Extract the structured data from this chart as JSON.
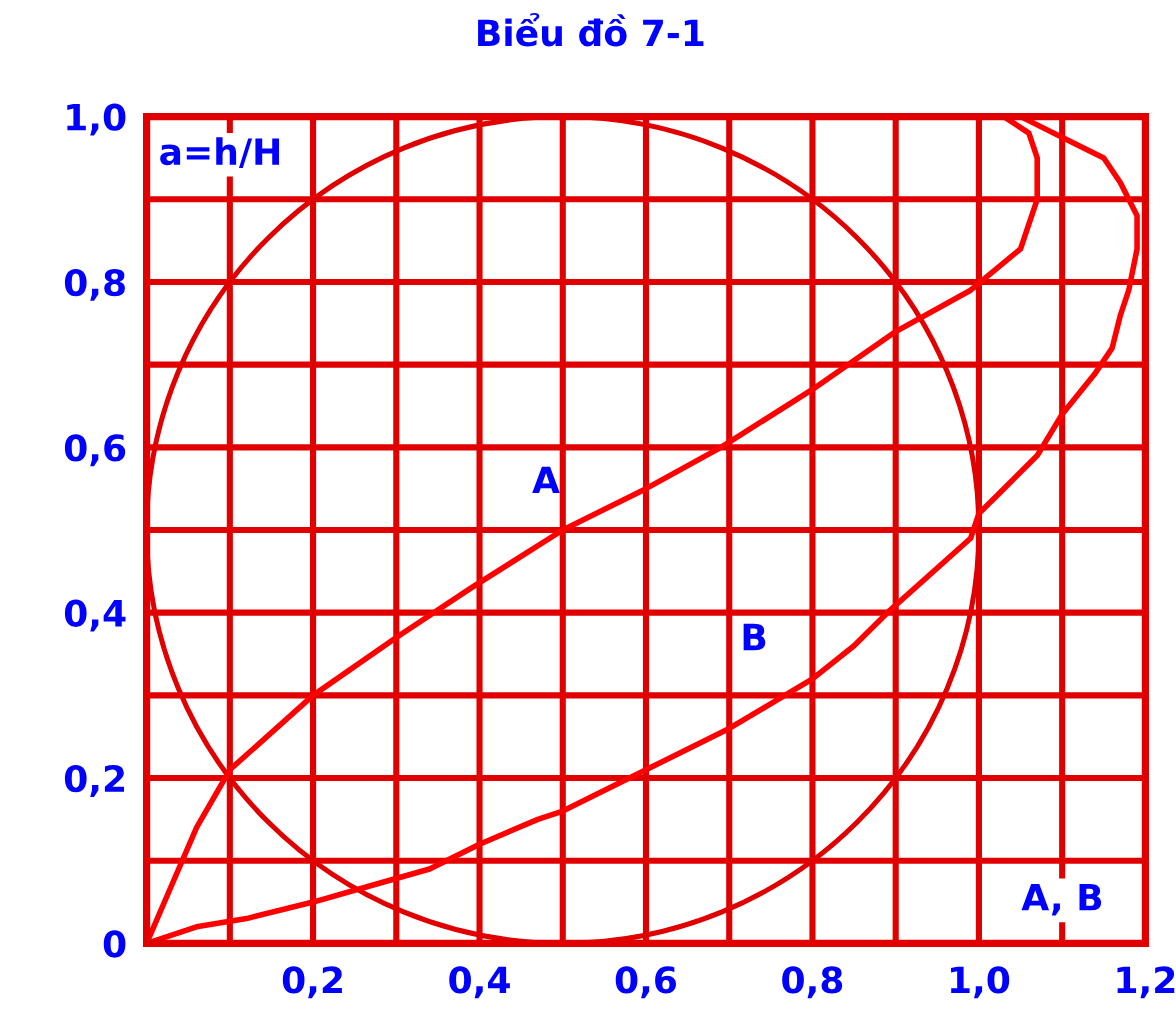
{
  "chart_data": {
    "type": "line",
    "title": "Biểu đồ 7-1",
    "xlabel": "A, B",
    "ylabel": "a=h/H",
    "xlim": [
      0,
      1.2
    ],
    "ylim": [
      0,
      1.0
    ],
    "xticks": [
      {
        "value": 0,
        "label": null
      },
      {
        "value": 0.1,
        "label": null
      },
      {
        "value": 0.2,
        "label": "0,2"
      },
      {
        "value": 0.3,
        "label": null
      },
      {
        "value": 0.4,
        "label": "0,4"
      },
      {
        "value": 0.5,
        "label": null
      },
      {
        "value": 0.6,
        "label": "0,6"
      },
      {
        "value": 0.7,
        "label": null
      },
      {
        "value": 0.8,
        "label": "0,8"
      },
      {
        "value": 0.9,
        "label": null
      },
      {
        "value": 1.0,
        "label": "1,0"
      },
      {
        "value": 1.1,
        "label": null
      },
      {
        "value": 1.2,
        "label": "1,2"
      }
    ],
    "yticks": [
      0,
      {
        "value": 0.1,
        "label": null
      },
      {
        "value": 0.2,
        "label": "0,2"
      },
      {
        "value": 0.3,
        "label": null
      },
      {
        "value": 0.4,
        "label": "0,4"
      },
      {
        "value": 0.5,
        "label": null
      },
      {
        "value": 0.6,
        "label": "0,6"
      },
      {
        "value": 0.7,
        "label": null
      },
      {
        "value": 0.8,
        "label": "0,8"
      },
      {
        "value": 0.9,
        "label": null
      },
      {
        "value": 1.0,
        "label": "1,0"
      }
    ],
    "grid": true,
    "series": [
      {
        "name": "A",
        "color": "#ff0000",
        "x": [
          0,
          0.03,
          0.06,
          0.1,
          0.2,
          0.3,
          0.39,
          0.5,
          0.6,
          0.69,
          0.8,
          0.9,
          0.99,
          1.05,
          1.07,
          1.07,
          1.06,
          1.03
        ],
        "values": [
          0,
          0.07,
          0.14,
          0.21,
          0.3,
          0.37,
          0.43,
          0.5,
          0.55,
          0.6,
          0.67,
          0.74,
          0.79,
          0.84,
          0.9,
          0.95,
          0.98,
          1.0
        ]
      },
      {
        "name": "B",
        "color": "#ff0000",
        "x": [
          0,
          0.06,
          0.12,
          0.2,
          0.27,
          0.34,
          0.4,
          0.47,
          0.5,
          0.6,
          0.7,
          0.8,
          0.85,
          0.89,
          0.99,
          1.0,
          1.03,
          1.07,
          1.1,
          1.14,
          1.16,
          1.17,
          1.18,
          1.19,
          1.19,
          1.17,
          1.15,
          1.11,
          1.07,
          1.05
        ],
        "values": [
          0,
          0.02,
          0.03,
          0.05,
          0.07,
          0.09,
          0.12,
          0.15,
          0.16,
          0.21,
          0.26,
          0.32,
          0.36,
          0.4,
          0.49,
          0.52,
          0.55,
          0.59,
          0.64,
          0.69,
          0.72,
          0.76,
          0.79,
          0.84,
          0.88,
          0.92,
          0.95,
          0.97,
          0.99,
          1.0
        ]
      }
    ]
  }
}
